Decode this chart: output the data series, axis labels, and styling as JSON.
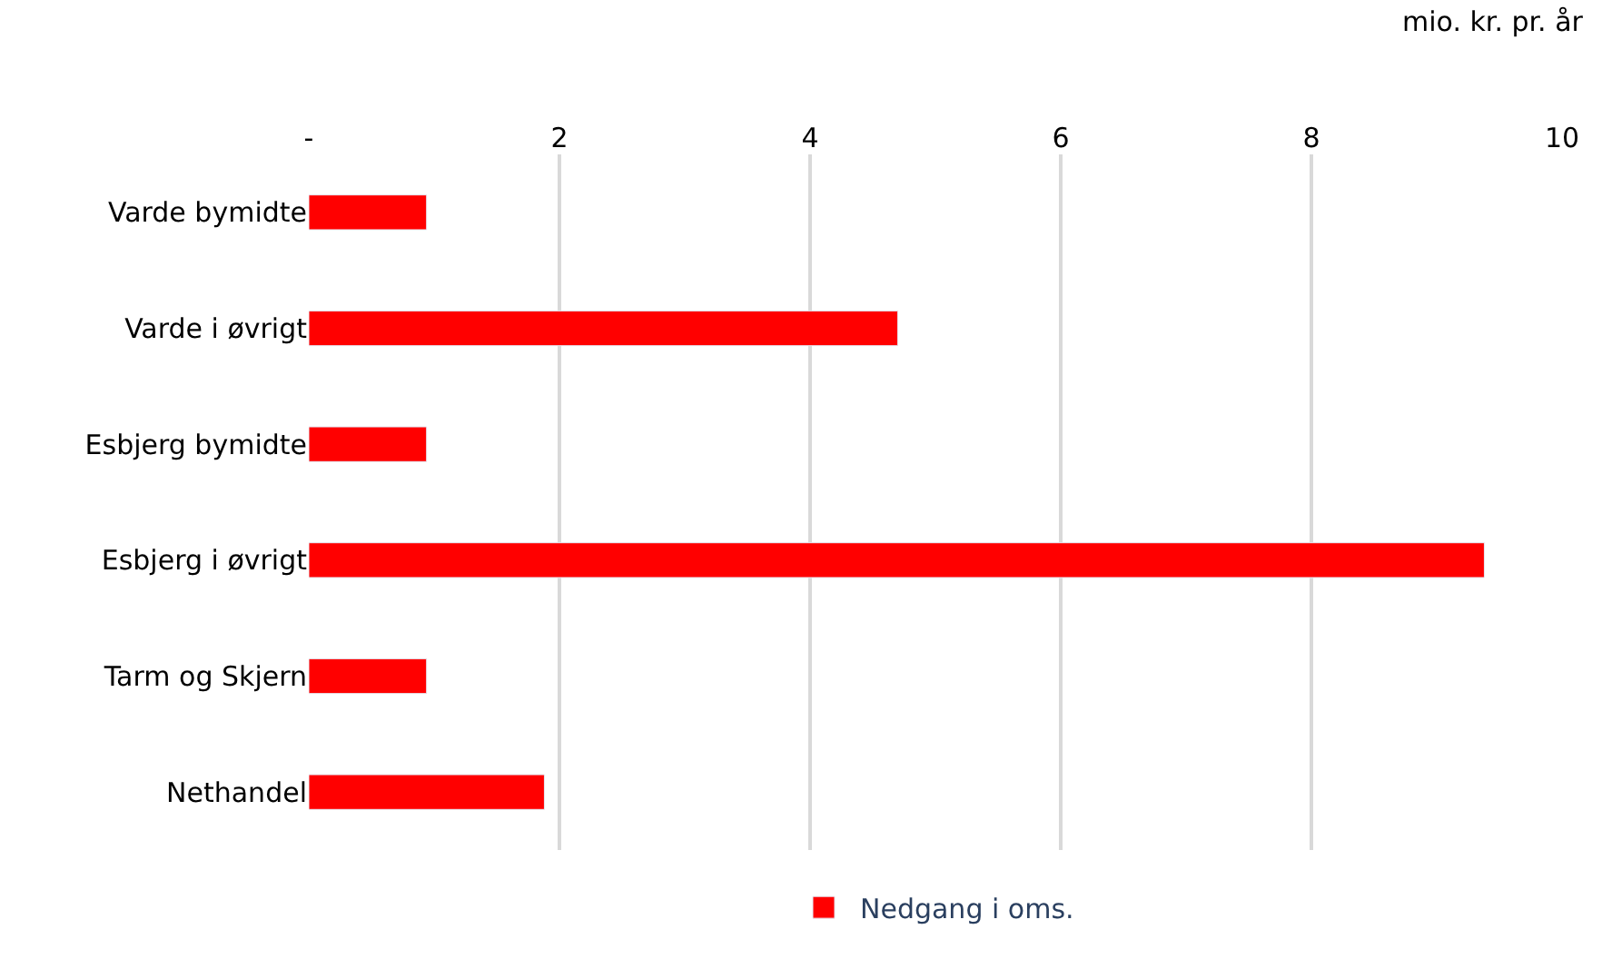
{
  "chart_data": {
    "type": "bar",
    "orientation": "horizontal",
    "xlabel": "mio. kr. pr. år",
    "categories": [
      "Varde bymidte",
      "Varde i øvrigt",
      "Esbjerg bymidte",
      "Esbjerg i øvrigt",
      "Tarm og Skjern",
      "Nethandel"
    ],
    "series": [
      {
        "name": "Nedgang i oms.",
        "color": "#ff0000",
        "values": [
          0.94,
          4.7,
          0.94,
          9.38,
          0.94,
          1.88
        ]
      }
    ],
    "xlim": [
      0,
      10
    ],
    "xticks": [
      {
        "value": 0,
        "label": "-"
      },
      2,
      4,
      6,
      8,
      10
    ],
    "grid": "x",
    "legend": "bottom"
  }
}
